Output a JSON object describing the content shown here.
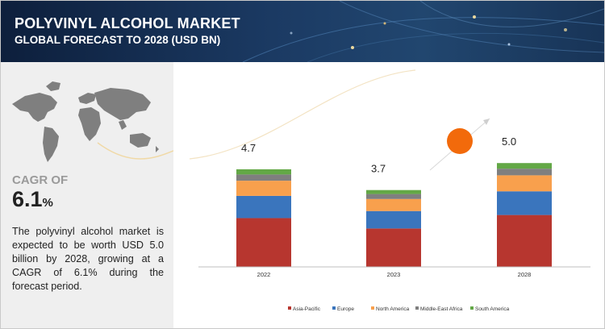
{
  "header": {
    "title": "POLYVINYL ALCOHOL MARKET",
    "subtitle": "GLOBAL FORECAST TO 2028 (USD BN)"
  },
  "left_panel": {
    "cagr_label": "CAGR OF",
    "cagr_value": "6.1",
    "cagr_unit": "%",
    "description": "The polyvinyl alcohol market is expected to be worth USD 5.0 billion by 2028, growing at a CAGR of 6.1% during the forecast period."
  },
  "colors": {
    "header_bg": "#1b3a63",
    "left_panel_bg": "#efefef",
    "accent_circle": "#f26a0b",
    "asia_pacific": "#b7362f",
    "europe": "#3a75bd",
    "north_america": "#f8a04d",
    "middle_east_africa": "#7f7f7f",
    "south_america": "#63a846"
  },
  "chart_data": {
    "type": "bar",
    "stacked": true,
    "categories": [
      "2022",
      "2023",
      "2028"
    ],
    "totals_labels": [
      "4.7",
      "3.7",
      "5.0"
    ],
    "totals": [
      4.7,
      3.7,
      5.0
    ],
    "series": [
      {
        "name": "Asia-Pacific",
        "color": "#b7362f",
        "values": [
          2.35,
          1.85,
          2.5
        ]
      },
      {
        "name": "Europe",
        "color": "#3a75bd",
        "values": [
          1.07,
          0.84,
          1.14
        ]
      },
      {
        "name": "North America",
        "color": "#f8a04d",
        "values": [
          0.73,
          0.58,
          0.77
        ]
      },
      {
        "name": "Middle-East Africa",
        "color": "#7f7f7f",
        "values": [
          0.3,
          0.24,
          0.32
        ]
      },
      {
        "name": "South America",
        "color": "#63a846",
        "values": [
          0.25,
          0.19,
          0.27
        ]
      }
    ],
    "legend_position": "bottom",
    "grid": false,
    "ylim": [
      0,
      6.6
    ]
  }
}
